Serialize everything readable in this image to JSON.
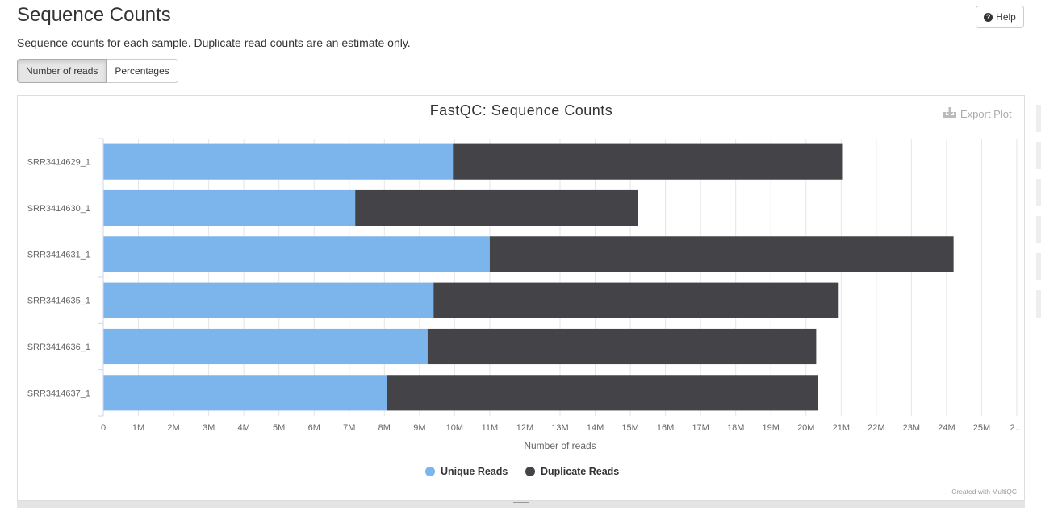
{
  "header": {
    "title": "Sequence Counts",
    "description": "Sequence counts for each sample. Duplicate read counts are an estimate only.",
    "help_label": "Help",
    "help_icon": "question-circle-icon"
  },
  "toggle": {
    "options": [
      "Number of reads",
      "Percentages"
    ],
    "selected": "Number of reads"
  },
  "plot": {
    "export_label": "Export Plot",
    "export_icon": "download-icon",
    "credit": "Created with MultiQC"
  },
  "chart_data": {
    "type": "bar",
    "orientation": "horizontal",
    "stacked": true,
    "title": "FastQC: Sequence Counts",
    "xlabel": "Number of reads",
    "ylabel": "",
    "xlim": [
      0,
      26000000
    ],
    "x_tick_labels": [
      "0",
      "1M",
      "2M",
      "3M",
      "4M",
      "5M",
      "6M",
      "7M",
      "8M",
      "9M",
      "10M",
      "11M",
      "12M",
      "13M",
      "14M",
      "15M",
      "16M",
      "17M",
      "18M",
      "19M",
      "20M",
      "21M",
      "22M",
      "23M",
      "24M",
      "25M",
      "2…"
    ],
    "grid": true,
    "legend_position": "bottom",
    "categories": [
      "SRR3414629_1",
      "SRR3414630_1",
      "SRR3414631_1",
      "SRR3414635_1",
      "SRR3414636_1",
      "SRR3414637_1"
    ],
    "series": [
      {
        "name": "Unique Reads",
        "color": "#7cb5ec",
        "values": [
          9950000,
          7170000,
          11000000,
          9400000,
          9230000,
          8070000
        ]
      },
      {
        "name": "Duplicate Reads",
        "color": "#434348",
        "values": [
          11100000,
          8050000,
          13200000,
          11530000,
          11060000,
          12280000
        ]
      }
    ]
  }
}
